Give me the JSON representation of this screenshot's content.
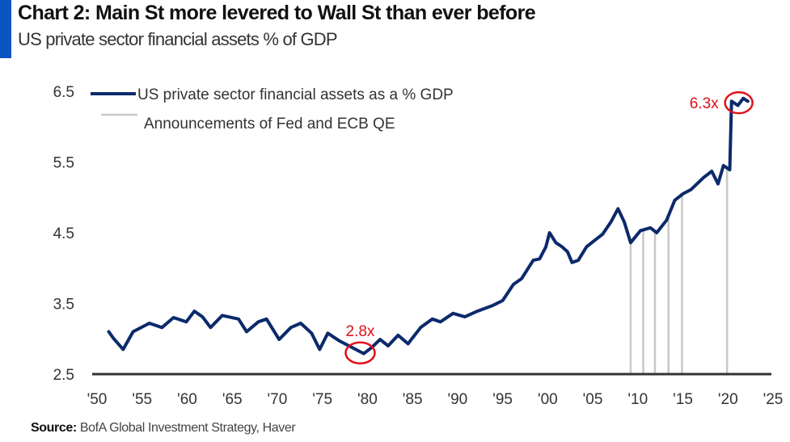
{
  "header": {
    "title": "Chart 2:  Main St more levered to Wall St than ever before",
    "subtitle": "US private sector financial assets % of GDP",
    "accent_color": "#0a55c4"
  },
  "footer": {
    "source_label": "Source:",
    "source_text": "BofA Global Investment Strategy, Haver"
  },
  "chart_data": {
    "type": "line",
    "title": "Chart 2:  Main St more levered to Wall St than ever before",
    "subtitle": "US private sector financial assets % of GDP",
    "xlabel": "",
    "ylabel": "",
    "xlim": [
      1950,
      2025
    ],
    "ylim": [
      2.5,
      6.5
    ],
    "grid": false,
    "legend_position": "top-left",
    "x_ticks": [
      1950,
      1955,
      1960,
      1965,
      1970,
      1975,
      1980,
      1985,
      1990,
      1995,
      2000,
      2005,
      2010,
      2015,
      2020,
      2025
    ],
    "x_tick_labels": [
      "'50",
      "'55",
      "'60",
      "'65",
      "'70",
      "'75",
      "'80",
      "'85",
      "'90",
      "'95",
      "'00",
      "'05",
      "'10",
      "'15",
      "'20",
      "'25"
    ],
    "y_ticks": [
      2.5,
      3.5,
      4.5,
      5.5,
      6.5
    ],
    "y_tick_labels": [
      "2.5",
      "3.5",
      "4.5",
      "5.5",
      "6.5"
    ],
    "series": [
      {
        "name": "US private sector financial assets as a % GDP",
        "color": "#0b2a6b",
        "x": [
          1951.3,
          1951.8,
          1952.9,
          1954.0,
          1955.8,
          1957.2,
          1958.5,
          1959.9,
          1960.8,
          1961.7,
          1962.6,
          1963.9,
          1965.7,
          1966.6,
          1967.9,
          1968.8,
          1970.2,
          1971.5,
          1972.6,
          1973.8,
          1974.7,
          1975.6,
          1976.9,
          1978.7,
          1979.6,
          1980.5,
          1981.4,
          1982.3,
          1983.4,
          1984.5,
          1985.9,
          1987.2,
          1988.1,
          1989.5,
          1990.8,
          1992.2,
          1993.9,
          1995.0,
          1996.2,
          1997.1,
          1998.4,
          1999.1,
          1999.8,
          2000.2,
          2000.9,
          2001.6,
          2002.2,
          2002.7,
          2003.4,
          2004.3,
          2005.2,
          2006.1,
          2007.0,
          2007.8,
          2008.5,
          2009.2,
          2010.3,
          2011.4,
          2012.1,
          2013.2,
          2014.1,
          2015.0,
          2015.9,
          2017.3,
          2018.2,
          2018.9,
          2019.5,
          2020.2,
          2020.4,
          2021.1,
          2021.7,
          2022.2
        ],
        "values": [
          3.1,
          3.01,
          2.85,
          3.1,
          3.22,
          3.16,
          3.3,
          3.24,
          3.39,
          3.31,
          3.16,
          3.33,
          3.28,
          3.1,
          3.24,
          3.28,
          2.99,
          3.16,
          3.22,
          3.08,
          2.85,
          3.08,
          2.97,
          2.85,
          2.79,
          2.88,
          2.99,
          2.9,
          3.05,
          2.93,
          3.16,
          3.28,
          3.24,
          3.36,
          3.31,
          3.39,
          3.47,
          3.54,
          3.77,
          3.85,
          4.11,
          4.13,
          4.3,
          4.5,
          4.36,
          4.3,
          4.23,
          4.08,
          4.11,
          4.3,
          4.39,
          4.48,
          4.65,
          4.84,
          4.65,
          4.36,
          4.53,
          4.57,
          4.5,
          4.68,
          4.96,
          5.05,
          5.11,
          5.28,
          5.37,
          5.19,
          5.45,
          5.39,
          6.36,
          6.3,
          6.4,
          6.36
        ]
      }
    ],
    "vertical_markers": {
      "name": "Announcements of Fed and ECB QE",
      "color": "#c8c8c8",
      "x": [
        2009.2,
        2010.6,
        2011.9,
        2013.4,
        2014.9,
        2019.9
      ]
    },
    "annotations": [
      {
        "text": "2.8x",
        "x": 1979.2,
        "y": 2.8,
        "color": "#e0101a"
      },
      {
        "text": "6.3x",
        "x": 2021.2,
        "y": 6.35,
        "color": "#e0101a"
      }
    ]
  }
}
